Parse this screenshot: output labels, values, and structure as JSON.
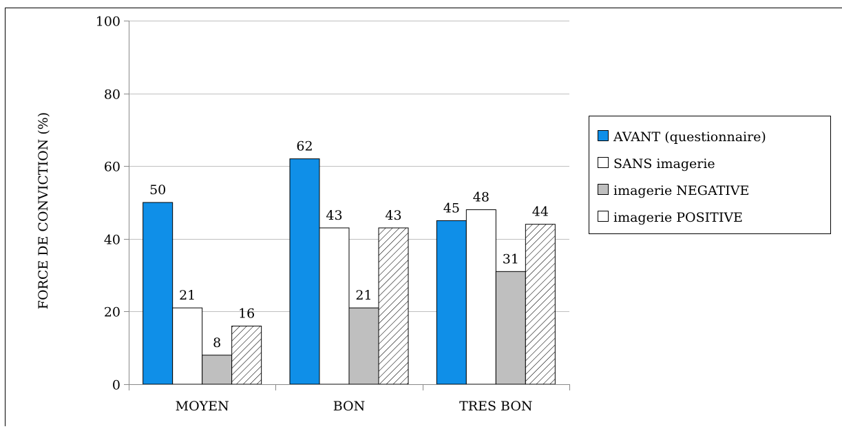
{
  "chart_data": {
    "type": "bar",
    "categories": [
      "MOYEN",
      "BON",
      "TRES BON"
    ],
    "series": [
      {
        "name": "AVANT (questionnaire)",
        "values": [
          50,
          62,
          45
        ],
        "fill": "#0f8fe8",
        "pattern": "solid"
      },
      {
        "name": "SANS imagerie",
        "values": [
          21,
          43,
          48
        ],
        "fill": "#ffffff",
        "pattern": "solid"
      },
      {
        "name": "imagerie NEGATIVE",
        "values": [
          8,
          21,
          31
        ],
        "fill": "#bfbfbf",
        "pattern": "solid"
      },
      {
        "name": "imagerie POSITIVE",
        "values": [
          16,
          43,
          44
        ],
        "fill": "#ffffff",
        "pattern": "hatch"
      }
    ],
    "title": "",
    "xlabel": "",
    "ylabel": "FORCE DE CONVICTION (%)",
    "ylim": [
      0,
      100
    ],
    "yticks": [
      0,
      20,
      40,
      60,
      80,
      100
    ],
    "grid": true,
    "legend": "right"
  }
}
